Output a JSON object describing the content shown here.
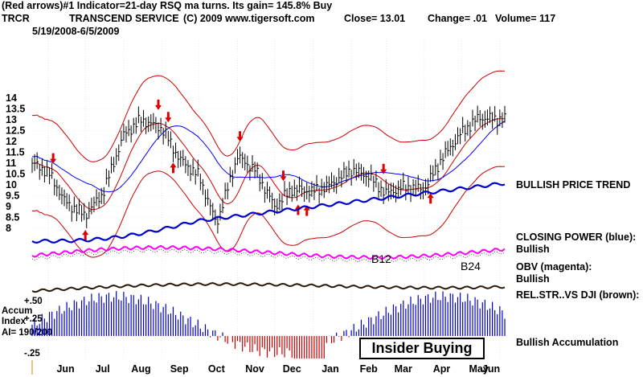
{
  "header": {
    "line1": "(Red arrows)#1 Indicator=21-day RSQ ma turns.  Its gain= 145.8% Buy",
    "ticker": "TRCR",
    "company": "TRANSCEND SERVICE",
    "copyright": "(C) 2009  www.tigersoft.com",
    "close": "Close=  13.01",
    "change": "Change= .01",
    "volume": "Volume=  117",
    "date_range": "5/19/2008-6/5/2009"
  },
  "labels": {
    "bullish_price_trend": "BULLISH PRICE TREND",
    "closing_power_title": "CLOSING POWER (blue):",
    "closing_power_value": "Bullish",
    "obv_title": "OBV (magenta):",
    "obv_value": "Bullish",
    "rel_str": "REL.STR..VS DJI (brown):",
    "bullish_accumulation": "Bullish Accumulation",
    "insider_buying": "Insider Buying",
    "b12": "B12",
    "b24": "B24",
    "accum_label": "Accum",
    "index_label": "Index",
    "ai_label": "AI= 190/200"
  },
  "colors": {
    "price_bars": "#000000",
    "bands": "#cc0000",
    "ma_blue": "#0000ff",
    "closing_power": "#0000cc",
    "obv": "#ff00ff",
    "rel_strength": "#2a1a0a",
    "accum_pos": "#0000cc",
    "accum_neg": "#cc0000",
    "arrow": "#dd0000"
  },
  "chart_data": {
    "type": "line",
    "ticker": "TRCR",
    "y_ticks": [
      "14",
      "13.5",
      "13",
      "12.5",
      "12",
      "11.5",
      "11",
      "10.5",
      "10",
      "9.5",
      "9",
      "8.5",
      "8"
    ],
    "ylim": [
      8,
      14
    ],
    "x_ticks": [
      "Jun",
      "Jul",
      "Aug",
      "Sep",
      "Oct",
      "Nov",
      "Dec",
      "Jan",
      "Feb",
      "Mar",
      "Apr",
      "May",
      "Jun"
    ],
    "accum_ticks": [
      "+.50",
      "+.25",
      "-.25"
    ],
    "price": {
      "x": [
        "2008-05-19",
        "2008-06-01",
        "2008-06-15",
        "2008-07-01",
        "2008-07-15",
        "2008-08-01",
        "2008-08-15",
        "2008-09-01",
        "2008-09-15",
        "2008-10-01",
        "2008-10-15",
        "2008-11-01",
        "2008-11-15",
        "2008-12-01",
        "2008-12-15",
        "2009-01-01",
        "2009-01-15",
        "2009-02-01",
        "2009-02-15",
        "2009-03-01",
        "2009-03-15",
        "2009-04-01",
        "2009-04-15",
        "2009-05-01",
        "2009-05-15",
        "2009-06-05"
      ],
      "close": [
        11.0,
        10.6,
        9.2,
        8.6,
        9.6,
        12.3,
        13.0,
        12.6,
        11.2,
        10.4,
        8.2,
        11.3,
        10.7,
        9.0,
        9.8,
        9.7,
        10.0,
        10.7,
        10.4,
        9.6,
        9.9,
        9.8,
        11.2,
        12.4,
        13.1,
        13.01
      ]
    },
    "buy_arrows": [
      "2008-07-01",
      "2008-09-10",
      "2008-12-20",
      "2008-12-27",
      "2009-04-06"
    ],
    "sell_arrows": [
      "2008-06-05",
      "2008-08-29",
      "2008-09-06",
      "2008-11-03",
      "2008-12-08",
      "2009-02-27"
    ]
  }
}
